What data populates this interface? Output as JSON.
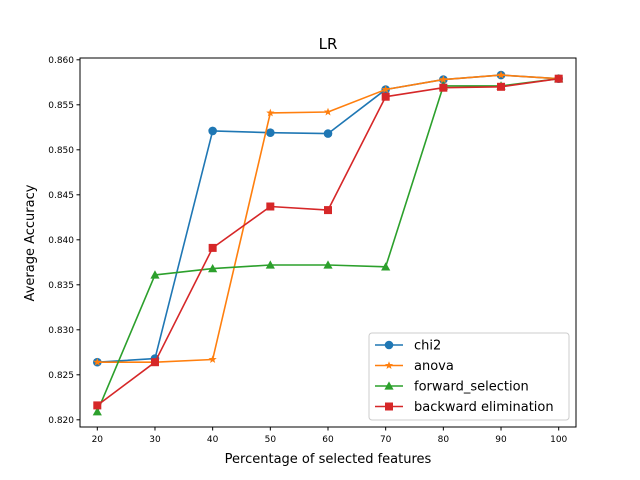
{
  "chart_data": {
    "type": "line",
    "title": "LR",
    "xlabel": "Percentage of selected features",
    "ylabel": "Average Accuracy",
    "x": [
      20,
      30,
      40,
      50,
      60,
      70,
      80,
      90,
      100
    ],
    "xlim": [
      17,
      103
    ],
    "ylim": [
      0.8192,
      0.8602
    ],
    "xticks": [
      "20",
      "30",
      "40",
      "50",
      "60",
      "70",
      "80",
      "90",
      "100"
    ],
    "yticks": [
      "0.820",
      "0.825",
      "0.830",
      "0.835",
      "0.840",
      "0.845",
      "0.850",
      "0.855",
      "0.860"
    ],
    "grid": false,
    "legend_position": "lower-right",
    "series": [
      {
        "name": "chi2",
        "color": "#1f77b4",
        "marker": "circle",
        "values": [
          0.8264,
          0.8268,
          0.8521,
          0.8519,
          0.8518,
          0.8567,
          0.8578,
          0.8583,
          0.8579
        ]
      },
      {
        "name": "anova",
        "color": "#ff7f0e",
        "marker": "star",
        "values": [
          0.8264,
          0.8264,
          0.8267,
          0.8541,
          0.8542,
          0.8567,
          0.8578,
          0.8583,
          0.8579
        ]
      },
      {
        "name": "forward_selection",
        "color": "#2ca02c",
        "marker": "triangle",
        "values": [
          0.8209,
          0.8361,
          0.8368,
          0.8372,
          0.8372,
          0.837,
          0.8571,
          0.8571,
          0.8579
        ]
      },
      {
        "name": "backward elimination",
        "color": "#d62728",
        "marker": "square",
        "values": [
          0.8216,
          0.8264,
          0.8391,
          0.8437,
          0.8433,
          0.8559,
          0.8569,
          0.857,
          0.8579
        ]
      }
    ]
  }
}
